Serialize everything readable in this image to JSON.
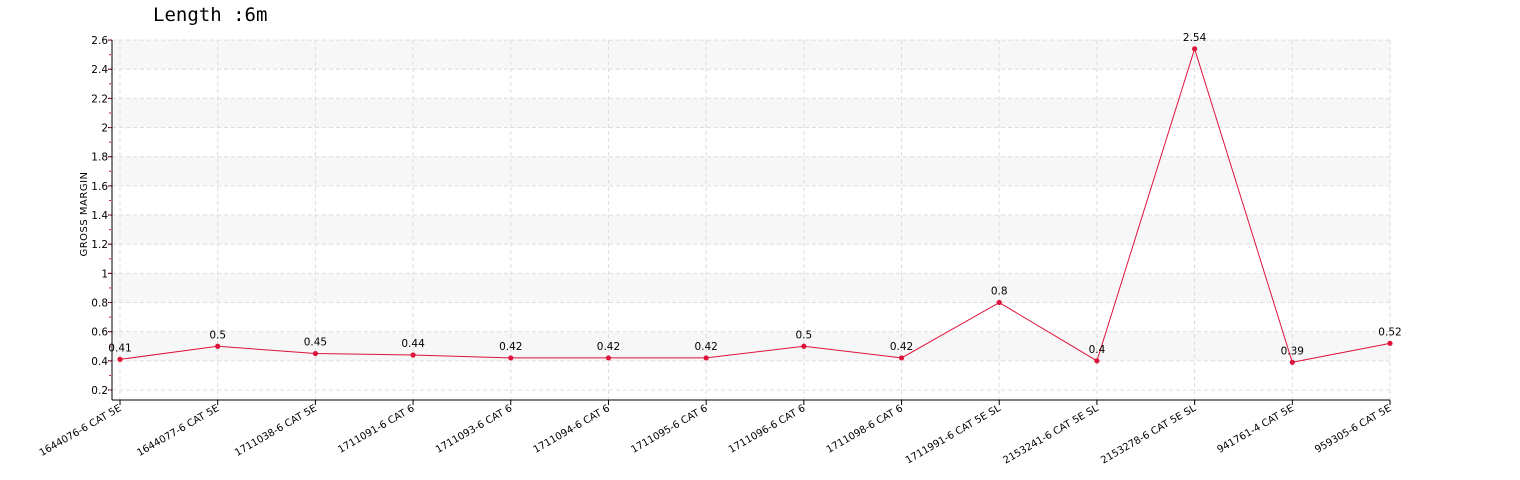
{
  "chart_data": {
    "type": "line",
    "title": "Length :6m",
    "xlabel": "",
    "ylabel": "GROSS MARGIN",
    "ylim": [
      0.2,
      2.6
    ],
    "yticks": [
      0.2,
      0.4,
      0.6,
      0.8,
      1,
      1.2,
      1.4,
      1.6,
      1.8,
      2,
      2.2,
      2.4,
      2.6
    ],
    "ytick_labels": [
      "0.2",
      "0.4",
      "0.6",
      "0.8",
      "1",
      "1.2",
      "1.4",
      "1.6",
      "1.8",
      "2",
      "2.2",
      "2.4",
      "2.6"
    ],
    "grid": true,
    "categories": [
      "1644076-6 CAT 5E",
      "1644077-6 CAT 5E",
      "1711038-6 CAT 5E",
      "1711091-6 CAT 6",
      "1711093-6 CAT 6",
      "1711094-6 CAT 6",
      "1711095-6 CAT 6",
      "1711096-6 CAT 6",
      "1711098-6 CAT 6",
      "1711991-6 CAT 5E SL",
      "2153241-6 CAT 5E SL",
      "2153278-6 CAT 5E SL",
      "941761-4 CAT 5E",
      "959305-6 CAT 5E"
    ],
    "series": [
      {
        "values": [
          0.41,
          0.5,
          0.45,
          0.44,
          0.42,
          0.42,
          0.42,
          0.5,
          0.42,
          0.8,
          0.4,
          2.54,
          0.39,
          0.52
        ],
        "data_labels": [
          "0.41",
          "0.5",
          "0.45",
          "0.44",
          "0.42",
          "0.42",
          "0.42",
          "0.5",
          "0.42",
          "0.8",
          "0.4",
          "2.54",
          "0.39",
          "0.52"
        ],
        "color": "#dc143c"
      }
    ]
  }
}
